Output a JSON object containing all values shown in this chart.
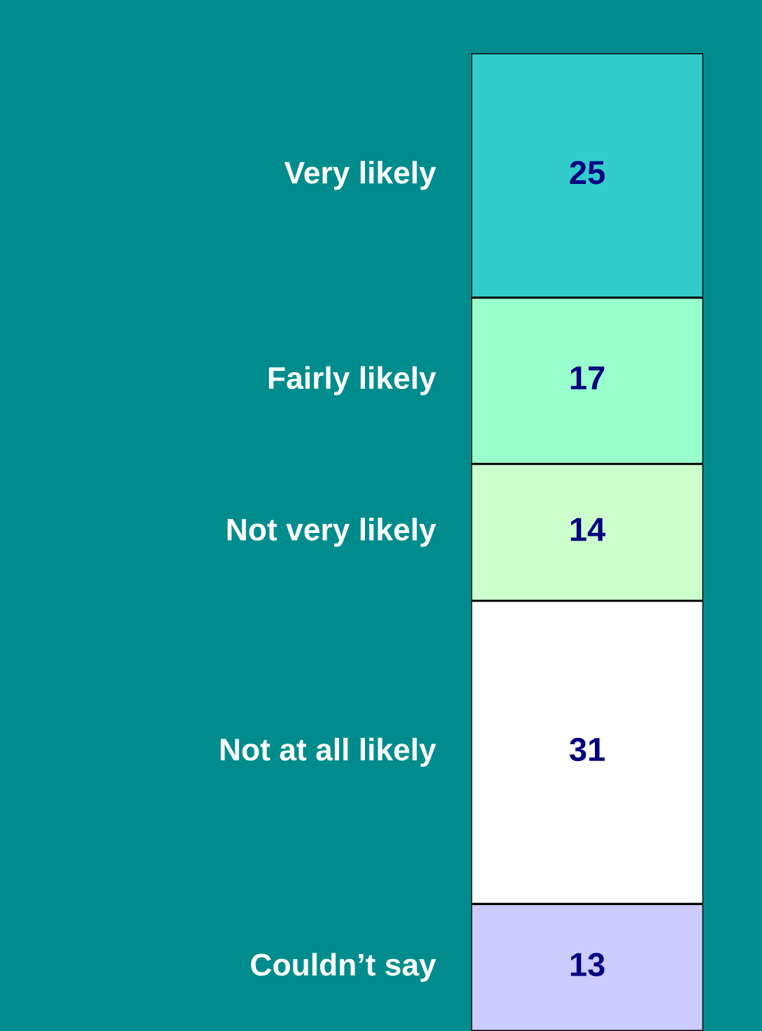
{
  "chart_data": {
    "type": "bar",
    "stacked": true,
    "categories": [
      null
    ],
    "data_labels": true,
    "legend": false,
    "tick_labels": false,
    "series": [
      {
        "name": "Couldn’t say",
        "color": "#ccccff",
        "values": [
          13
        ]
      },
      {
        "name": "Not at all likely",
        "color": "#ffffff",
        "values": [
          31
        ]
      },
      {
        "name": "Not very likely",
        "color": "#ccffcc",
        "values": [
          14
        ]
      },
      {
        "name": "Fairly likely",
        "color": "#99ffcc",
        "values": [
          17
        ]
      },
      {
        "name": "Very likely",
        "color": "#33cccc",
        "values": [
          25
        ]
      }
    ]
  }
}
